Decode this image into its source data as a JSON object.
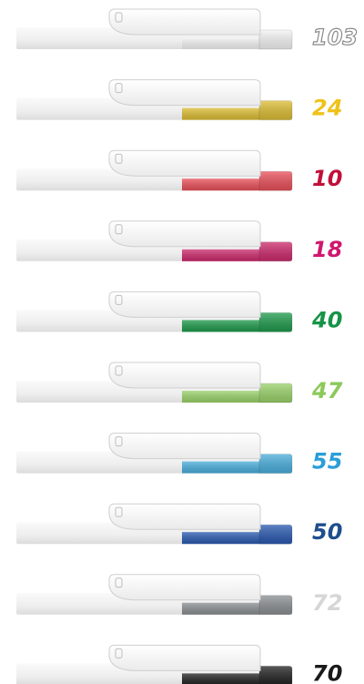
{
  "items": [
    {
      "label": "103",
      "pen_color": "#f4f4f4",
      "label_color": "#ffffff",
      "label_outline": "#8a8a8a"
    },
    {
      "label": "24",
      "pen_color": "#dcbd34",
      "label_color": "#eec21a"
    },
    {
      "label": "10",
      "pen_color": "#e9505a",
      "label_color": "#c2103a"
    },
    {
      "label": "18",
      "pen_color": "#cc2a6c",
      "label_color": "#d0176e"
    },
    {
      "label": "40",
      "pen_color": "#1f9a4c",
      "label_color": "#169447"
    },
    {
      "label": "47",
      "pen_color": "#9ad26a",
      "label_color": "#8cc95a"
    },
    {
      "label": "55",
      "pen_color": "#4aaedc",
      "label_color": "#2a9ed8"
    },
    {
      "label": "50",
      "pen_color": "#2a5ab0",
      "label_color": "#1f4e8c"
    },
    {
      "label": "72",
      "pen_color": "#8a8f92",
      "label_color": "#d6d6d6"
    },
    {
      "label": "70",
      "pen_color": "#222222",
      "label_color": "#1a1a1a"
    }
  ]
}
